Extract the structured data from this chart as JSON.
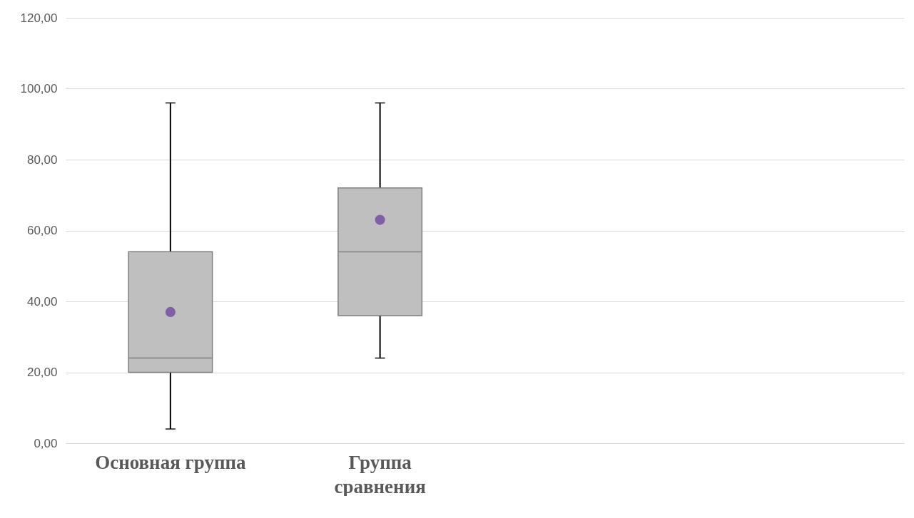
{
  "chart_data": {
    "type": "box",
    "categories": [
      "Основная группа",
      "Группа сравнения",
      null,
      null
    ],
    "boxes": [
      {
        "low": 4,
        "q1": 20,
        "median": 24,
        "q3": 54,
        "high": 96,
        "mean": 37
      },
      {
        "low": 24,
        "q1": 36,
        "median": 54,
        "q3": 72,
        "high": 96,
        "mean": 63
      },
      null,
      null
    ],
    "color": "#bfbfbf",
    "ylim": [
      0,
      120
    ],
    "yticks": [
      {
        "value": 0,
        "label": "0,00"
      },
      {
        "value": 20,
        "label": "20,00"
      },
      {
        "value": 40,
        "label": "40,00"
      },
      {
        "value": 60,
        "label": "60,00"
      },
      {
        "value": 80,
        "label": "80,00"
      },
      {
        "value": 100,
        "label": "100,00"
      },
      {
        "value": 120,
        "label": "120,00"
      }
    ],
    "grid": "y"
  }
}
